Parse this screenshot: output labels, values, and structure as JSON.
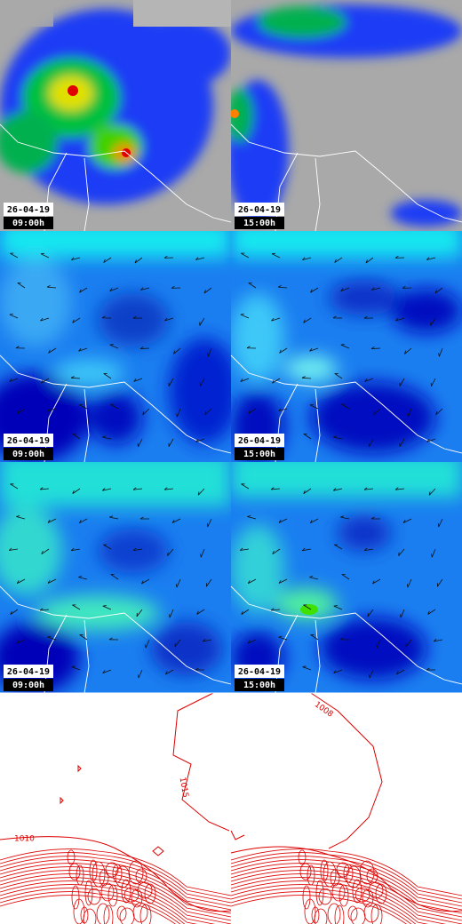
{
  "panels": [
    {
      "date": "26-04-19",
      "time": "09:00h"
    },
    {
      "date": "26-04-19",
      "time": "15:00h"
    },
    {
      "date": "26-04-19",
      "time": "09:00h"
    },
    {
      "date": "26-04-19",
      "time": "15:00h"
    },
    {
      "date": "26-04-19",
      "time": "09:00h"
    },
    {
      "date": "26-04-19",
      "time": "15:00h"
    }
  ],
  "pressure_maps": [
    {
      "labels": [
        "1015",
        "1010"
      ]
    },
    {
      "labels": [
        "1008"
      ]
    }
  ]
}
